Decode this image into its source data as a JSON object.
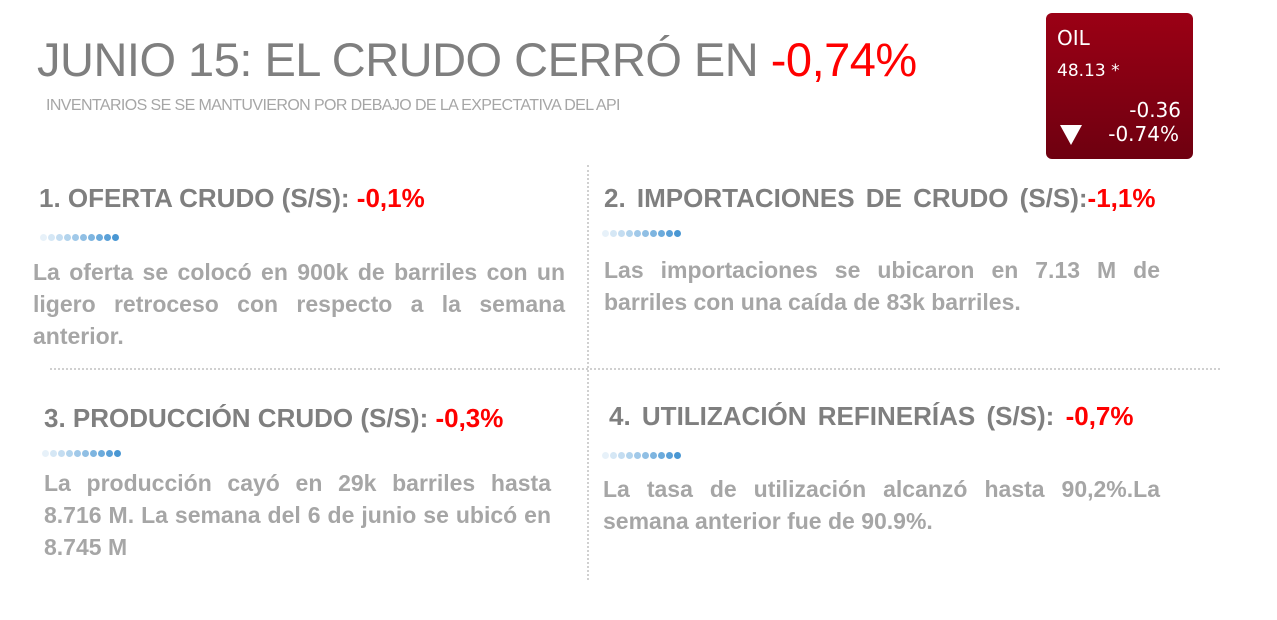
{
  "header": {
    "title_prefix": "JUNIO 15: EL CRUDO CERRÓ EN ",
    "title_value": "-0,74%",
    "subtitle": "INVENTARIOS SE SE MANTUVIERON POR DEBAJO DE LA EXPECTATIVA DEL API"
  },
  "ticker": {
    "symbol": "OIL",
    "price": "48.13 *",
    "change": "-0.36",
    "change_pct": "-0.74%",
    "direction_icon": "down-triangle-icon",
    "color": "#8b0012"
  },
  "sections": [
    {
      "heading": "1. OFERTA CRUDO (S/S): ",
      "value": "-0,1%",
      "text": "La oferta se colocó en 900k de barriles con un ligero retroceso con respecto a la semana anterior."
    },
    {
      "heading": "2. IMPORTACIONES DE CRUDO (S/S):",
      "value": "-1,1%",
      "text": "Las importaciones se ubicaron en 7.13 M de barriles con una caída de 83k barriles."
    },
    {
      "heading": "3. PRODUCCIÓN CRUDO (S/S): ",
      "value": "-0,3%",
      "text": "La producción cayó en 29k barriles hasta 8.716 M.  La semana del 6 de junio se ubicó en 8.745 M"
    },
    {
      "heading": "4. UTILIZACIÓN REFINERÍAS (S/S): ",
      "value": "-0,7%",
      "text": "La tasa de utilización alcanzó hasta 90,2%.La semana anterior fue de 90.9%."
    }
  ],
  "colors": {
    "negative": "#ff0000",
    "heading": "#7f7f7f",
    "body": "#a6a6a6",
    "accent_dots": "#3b8fd0"
  }
}
